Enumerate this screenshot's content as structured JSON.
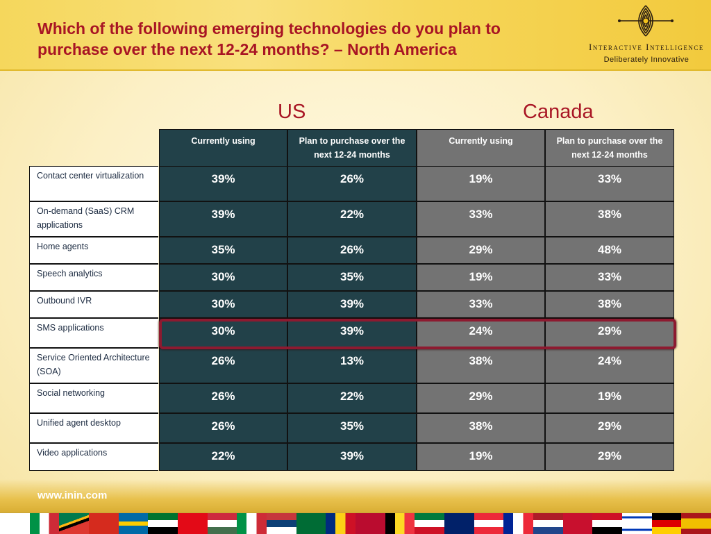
{
  "slide": {
    "title": "Which of the following emerging technologies do you plan to purchase over the next 12-24 months? – North America",
    "footer_url": "www.inin.com"
  },
  "logo": {
    "name": "Interactive Intelligence",
    "tagline": "Deliberately Innovative"
  },
  "colors": {
    "title_red": "#a81524",
    "us_cell": "#224149",
    "canada_cell": "#737373",
    "highlight_border": "#8d1a30"
  },
  "chart_data": {
    "type": "table",
    "groups": [
      "US",
      "Canada"
    ],
    "columns": [
      {
        "group": "US",
        "label": "Currently using"
      },
      {
        "group": "US",
        "label": "Plan to purchase over the next 12-24 months"
      },
      {
        "group": "Canada",
        "label": "Currently using"
      },
      {
        "group": "Canada",
        "label": "Plan to purchase over the next 12-24 months"
      }
    ],
    "rows": [
      {
        "label": "Contact center virtualization",
        "values": [
          "39%",
          "26%",
          "19%",
          "33%"
        ]
      },
      {
        "label": "On-demand (SaaS) CRM applications",
        "values": [
          "39%",
          "22%",
          "33%",
          "38%"
        ]
      },
      {
        "label": "Home agents",
        "values": [
          "35%",
          "26%",
          "29%",
          "48%"
        ]
      },
      {
        "label": "Speech analytics",
        "values": [
          "30%",
          "35%",
          "19%",
          "33%"
        ]
      },
      {
        "label": "Outbound IVR",
        "values": [
          "30%",
          "39%",
          "33%",
          "38%"
        ]
      },
      {
        "label": "SMS applications",
        "values": [
          "30%",
          "39%",
          "24%",
          "29%"
        ],
        "highlighted": true
      },
      {
        "label": "Service Oriented Architecture (SOA)",
        "values": [
          "26%",
          "13%",
          "38%",
          "24%"
        ]
      },
      {
        "label": "Social networking",
        "values": [
          "26%",
          "22%",
          "29%",
          "19%"
        ]
      },
      {
        "label": "Unified agent desktop",
        "values": [
          "26%",
          "35%",
          "38%",
          "29%"
        ]
      },
      {
        "label": "Video applications",
        "values": [
          "22%",
          "39%",
          "19%",
          "29%"
        ]
      }
    ]
  }
}
